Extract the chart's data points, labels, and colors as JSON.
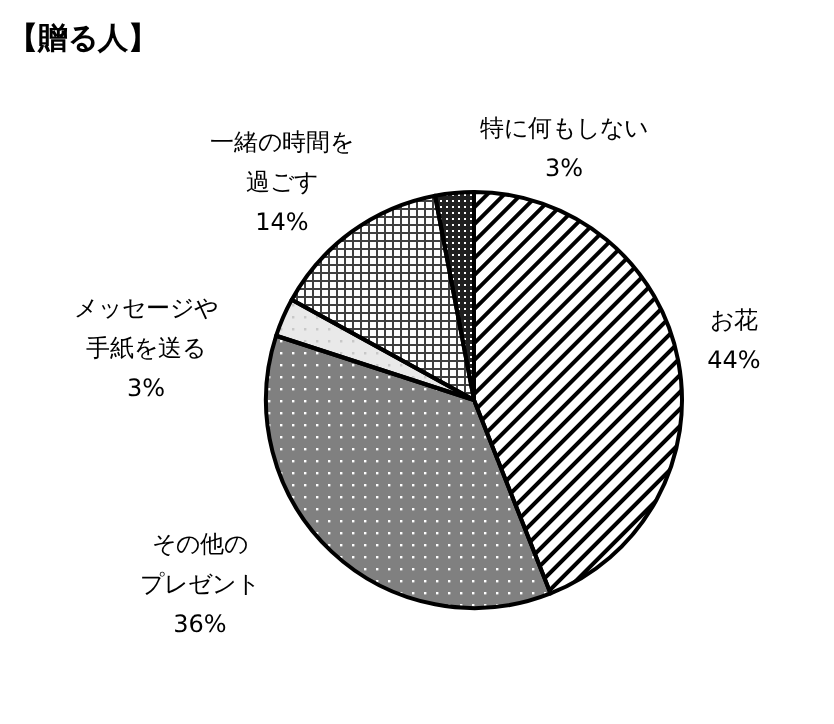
{
  "chart_data": {
    "type": "pie",
    "title": "【贈る人】",
    "categories": [
      "お花",
      "その他のプレゼント",
      "メッセージや手紙を送る",
      "一緒の時間を過ごす",
      "特に何もしない"
    ],
    "values": [
      44,
      36,
      3,
      14,
      3
    ],
    "value_labels": [
      "44%",
      "36%",
      "3%",
      "14%",
      "3%"
    ],
    "colors": [
      "#000000",
      "#808080",
      "#c8c8c8",
      "#404040",
      "#202020"
    ]
  }
}
